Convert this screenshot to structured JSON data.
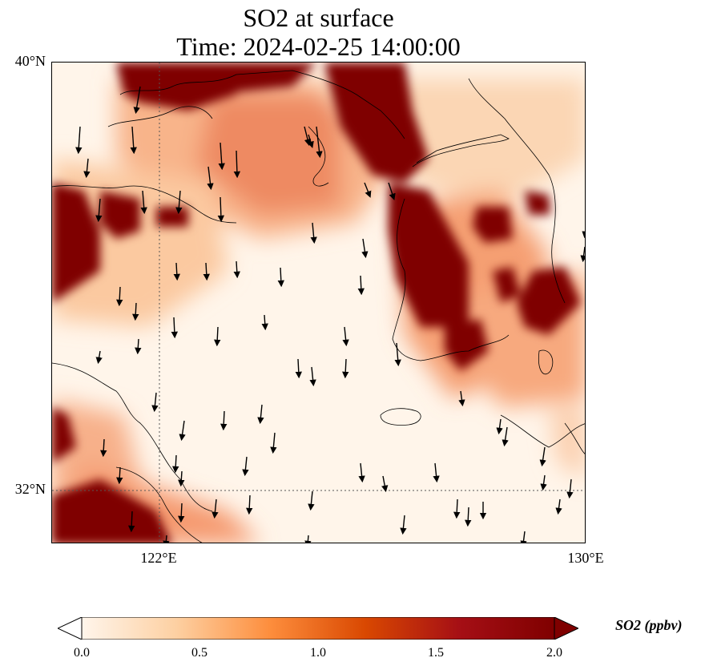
{
  "title": {
    "line1": "SO2 at surface",
    "line2": "Time: 2024-02-25 14:00:00"
  },
  "map": {
    "lat_labels": [
      "40°N",
      "32°N"
    ],
    "lon_labels": [
      "122°E",
      "130°E"
    ],
    "gridlines": "dotted",
    "features": [
      "coastlines",
      "wind-vectors",
      "SO2-concentration-field"
    ]
  },
  "colorbar": {
    "label": "SO2 (ppbv)",
    "ticks": [
      "0.0",
      "0.5",
      "1.0",
      "1.5",
      "2.0"
    ],
    "min": 0.0,
    "max": 2.0,
    "extend": "both",
    "colors": [
      "#fff5eb",
      "#fdd0a2",
      "#fd8d3c",
      "#d94801",
      "#a50f15",
      "#7f0000"
    ]
  }
}
